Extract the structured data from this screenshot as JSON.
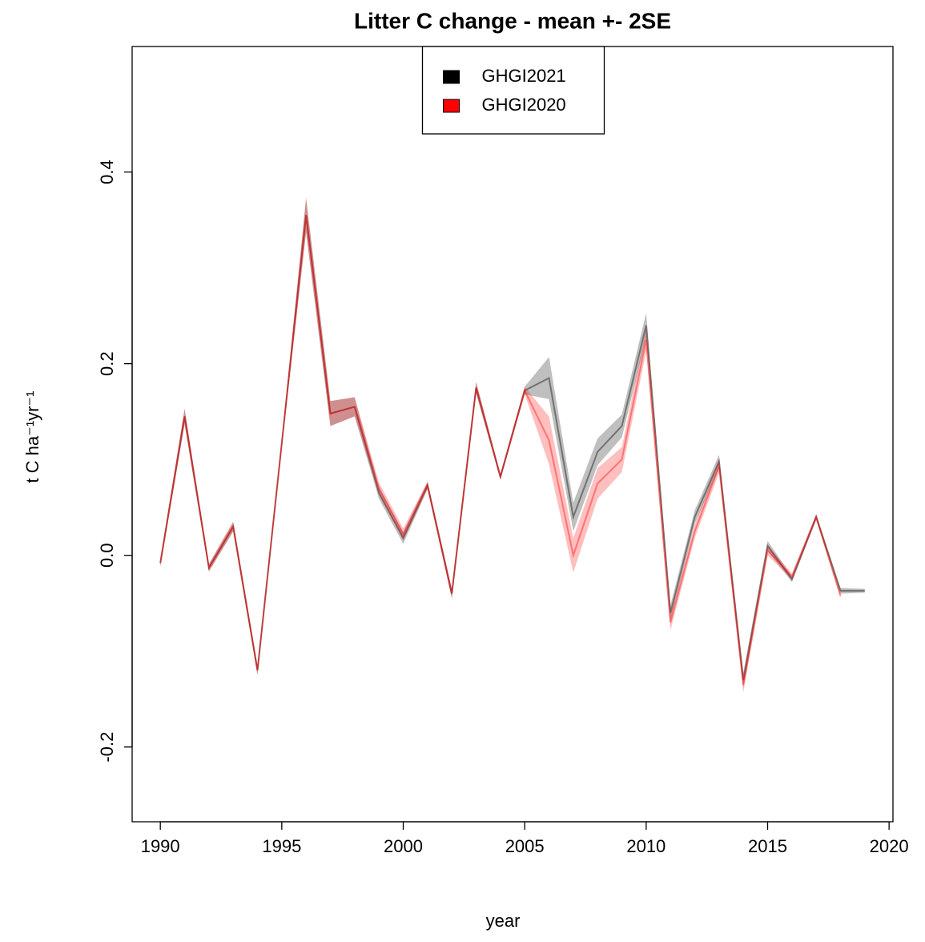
{
  "chart_data": {
    "type": "line-band",
    "title": "Litter C change - mean +- 2SE",
    "x_label": "year",
    "y_label": "t C ha⁻¹yr⁻¹",
    "x": [
      1990,
      1991,
      1992,
      1993,
      1994,
      1995,
      1996,
      1997,
      1998,
      1999,
      2000,
      2001,
      2002,
      2003,
      2004,
      2005,
      2006,
      2007,
      2008,
      2009,
      2010,
      2011,
      2012,
      2013,
      2014,
      2015,
      2016,
      2017,
      2018,
      2019
    ],
    "series": [
      {
        "name": "GHGI2021",
        "color": "#000000",
        "values": [
          -0.008,
          0.145,
          -0.013,
          0.03,
          -0.12,
          0.117,
          0.355,
          0.148,
          0.155,
          0.065,
          0.018,
          0.073,
          -0.04,
          0.175,
          0.082,
          0.172,
          0.185,
          0.04,
          0.108,
          0.135,
          0.24,
          -0.06,
          0.04,
          0.098,
          -0.13,
          0.01,
          -0.025,
          0.04,
          -0.037,
          -0.037
        ],
        "errors": [
          0.004,
          0.008,
          0.004,
          0.005,
          0.005,
          0.004,
          0.018,
          0.013,
          0.01,
          0.006,
          0.006,
          0.004,
          0.005,
          0.006,
          0.003,
          0.004,
          0.022,
          0.015,
          0.014,
          0.012,
          0.013,
          0.008,
          0.007,
          0.007,
          0.008,
          0.005,
          0.003,
          0.003,
          0.003,
          0.002
        ]
      },
      {
        "name": "GHGI2020",
        "color": "#ff0000",
        "values": [
          -0.008,
          0.145,
          -0.013,
          0.03,
          -0.12,
          0.117,
          0.355,
          0.148,
          0.155,
          0.07,
          0.022,
          0.073,
          -0.04,
          0.175,
          0.082,
          0.172,
          0.12,
          0.0,
          0.075,
          0.1,
          0.225,
          -0.07,
          0.025,
          0.093,
          -0.135,
          0.005,
          -0.022,
          0.04,
          -0.042,
          null
        ],
        "errors": [
          0.004,
          0.008,
          0.004,
          0.005,
          0.005,
          0.004,
          0.018,
          0.013,
          0.01,
          0.006,
          0.006,
          0.004,
          0.005,
          0.006,
          0.003,
          0.004,
          0.025,
          0.018,
          0.016,
          0.013,
          0.012,
          0.008,
          0.007,
          0.007,
          0.008,
          0.005,
          0.003,
          0.003,
          0.003,
          null
        ]
      }
    ],
    "xlim": [
      1988.84,
      2020.16
    ],
    "xticks": [
      1990,
      1995,
      2000,
      2005,
      2010,
      2015,
      2020
    ],
    "ylim": [
      -0.278,
      0.531
    ],
    "yticks": [
      -0.2,
      {
        "value": 0,
        "label": "0.0"
      },
      0.2,
      0.4
    ],
    "legend": "top"
  }
}
